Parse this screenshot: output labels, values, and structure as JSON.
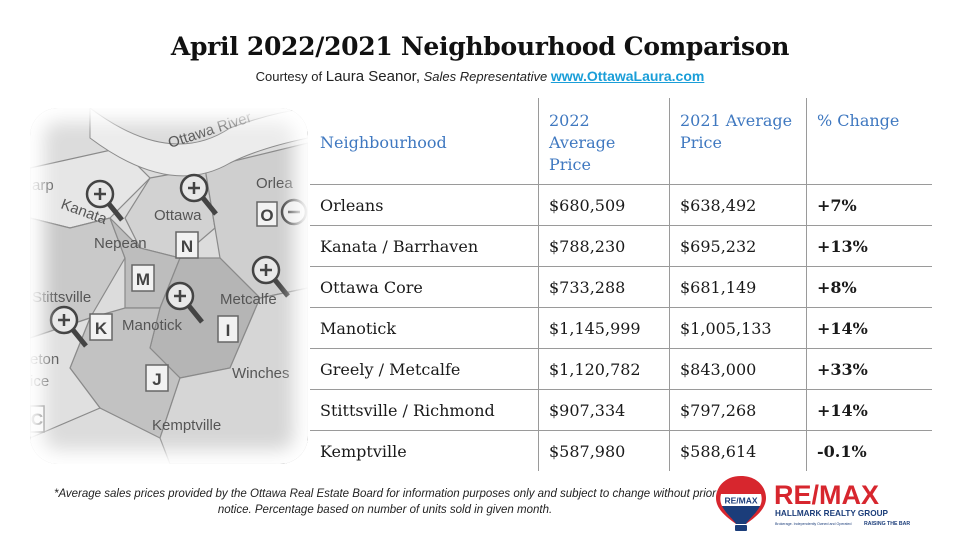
{
  "title": "April 2022/2021 Neighbourhood Comparison",
  "courtesy": {
    "prefix": "Courtesy of",
    "name": "Laura Seanor,",
    "role": "Sales Representative",
    "link": "www.OttawaLaura.com"
  },
  "map": {
    "labels": {
      "river": "Ottawa River",
      "orleans": "Orlea",
      "arp": "arp",
      "kanata": "Kanata",
      "ottawa": "Ottawa",
      "nepean": "Nepean",
      "stittsville": "Stittsville",
      "metcalfe": "Metcalfe",
      "manotick": "Manotick",
      "eton": "eton",
      "ice": "ice",
      "winches": "Winches",
      "kemptville": "Kemptville"
    },
    "letters": {
      "o": "O",
      "n": "N",
      "m": "M",
      "k": "K",
      "i": "I",
      "j": "J",
      "c": "C"
    }
  },
  "table": {
    "headers": [
      "Neighbourhood",
      "2022 Average Price",
      "2021 Average Price",
      "% Change"
    ],
    "rows": [
      {
        "name": "Orleans",
        "y2022": "$680,509",
        "y2021": "$638,492",
        "change": "+7%"
      },
      {
        "name": "Kanata / Barrhaven",
        "y2022": "$788,230",
        "y2021": "$695,232",
        "change": "+13%"
      },
      {
        "name": "Ottawa Core",
        "y2022": "$733,288",
        "y2021": "$681,149",
        "change": "+8%"
      },
      {
        "name": "Manotick",
        "y2022": "$1,145,999",
        "y2021": "$1,005,133",
        "change": "+14%"
      },
      {
        "name": "Greely / Metcalfe",
        "y2022": "$1,120,782",
        "y2021": "$843,000",
        "change": "+33%"
      },
      {
        "name": "Stittsville / Richmond",
        "y2022": "$907,334",
        "y2021": "$797,268",
        "change": "+14%"
      },
      {
        "name": "Kemptville",
        "y2022": "$587,980",
        "y2021": "$588,614",
        "change": "-0.1%"
      }
    ]
  },
  "footnote": "*Average sales prices provided by the Ottawa Real Estate Board for information purposes only and subject to change without prior notice. Percentage based on number of units sold in given month.",
  "logo": {
    "balloon_text": "RE/MAX",
    "brand": "RE/MAX",
    "company": "HALLMARK REALTY GROUP",
    "tagline_left": "Brokerage. Independently Owned and Operated",
    "tagline_right": "RAISING THE BAR"
  },
  "colors": {
    "header_blue": "#3f78c0",
    "change_red": "#d92a2a",
    "link_blue": "#1a9ed8",
    "remax_red": "#d7262e",
    "remax_blue": "#1b3d7a"
  }
}
